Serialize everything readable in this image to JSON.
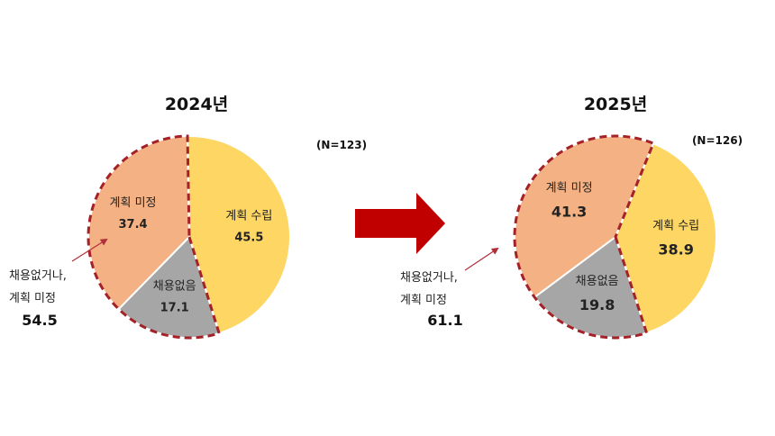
{
  "colors": {
    "planned": "#FDD663",
    "undecided": "#F4B183",
    "no_hiring": "#A6A6A6",
    "dash": "#A52128",
    "arrow": "#C00000"
  },
  "chart_data": [
    {
      "type": "pie",
      "title": "2024년",
      "n_label": "(N=123)",
      "slices": [
        {
          "label": "계획 수립",
          "value": 45.5,
          "value_label": "45.5",
          "color": "#FDD663"
        },
        {
          "label": "채용없음",
          "value": 17.1,
          "value_label": "17.1",
          "color": "#A6A6A6"
        },
        {
          "label": "계획 미정",
          "value": 37.4,
          "value_label": "37.4",
          "color": "#F4B183"
        }
      ],
      "callout": {
        "lines": [
          "채용없거나,",
          "계획 미정"
        ],
        "value": "54.5"
      }
    },
    {
      "type": "pie",
      "title": "2025년",
      "n_label": "(N=126)",
      "slices": [
        {
          "label": "계획 수립",
          "value": 38.9,
          "value_label": "38.9",
          "color": "#FDD663"
        },
        {
          "label": "채용없음",
          "value": 19.8,
          "value_label": "19.8",
          "color": "#A6A6A6"
        },
        {
          "label": "계획 미정",
          "value": 41.3,
          "value_label": "41.3",
          "color": "#F4B183"
        }
      ],
      "callout": {
        "lines": [
          "채용없거나,",
          "계획 미정"
        ],
        "value": "61.1"
      }
    }
  ]
}
